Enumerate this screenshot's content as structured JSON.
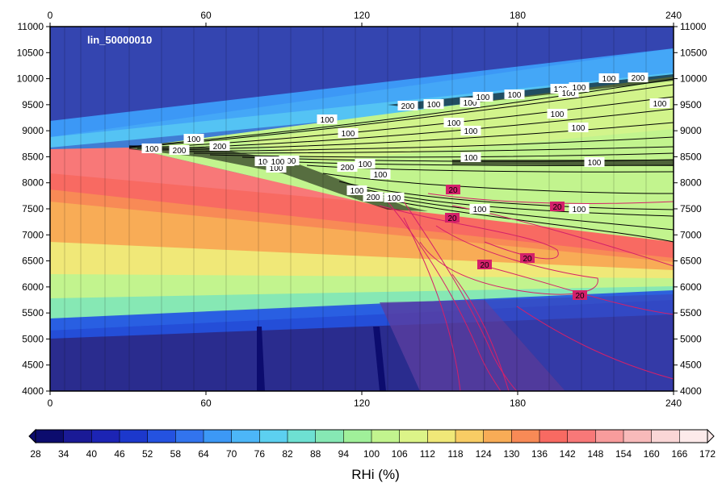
{
  "chart_data": {
    "type": "heatmap",
    "title": "lin_50000010",
    "colorbar_label": "RHi (%)",
    "x_ticks": [
      0,
      60,
      120,
      180,
      240
    ],
    "y_ticks": [
      4000,
      4500,
      5000,
      5500,
      6000,
      6500,
      7000,
      7500,
      8000,
      8500,
      9000,
      9500,
      10000,
      10500,
      11000
    ],
    "xlim": [
      0,
      240
    ],
    "ylim": [
      4000,
      11000
    ],
    "colorbar_ticks": [
      28,
      34,
      40,
      46,
      52,
      58,
      64,
      70,
      76,
      82,
      88,
      94,
      100,
      106,
      112,
      118,
      124,
      130,
      136,
      142,
      148,
      154,
      160,
      166,
      172
    ],
    "colorbar_colors": [
      "#0c0c6e",
      "#1a1a96",
      "#1c24b4",
      "#1c38cc",
      "#2452e0",
      "#3274ee",
      "#3c98f6",
      "#4cb6f8",
      "#5cd0f0",
      "#6ee0d2",
      "#86e8b4",
      "#a0f09a",
      "#c2f48e",
      "#dcf488",
      "#f0e878",
      "#f8cc64",
      "#f8ac56",
      "#f88a56",
      "#f86a62",
      "#f87878",
      "#f89c9c",
      "#f8baba",
      "#fad6d6",
      "#fdeaea"
    ],
    "contour_labels_black": [
      "100",
      "200",
      "100",
      "200",
      "100",
      "100",
      "200",
      "100",
      "100",
      "200",
      "100",
      "100",
      "100",
      "200",
      "100",
      "100",
      "100",
      "200",
      "100",
      "100",
      "100",
      "100",
      "100",
      "100",
      "100",
      "100",
      "200",
      "100",
      "100",
      "100",
      "100",
      "100",
      "100",
      "100",
      "100",
      "100"
    ],
    "contour_labels_magenta": [
      "20",
      "20",
      "20",
      "20",
      "20",
      "20"
    ]
  }
}
